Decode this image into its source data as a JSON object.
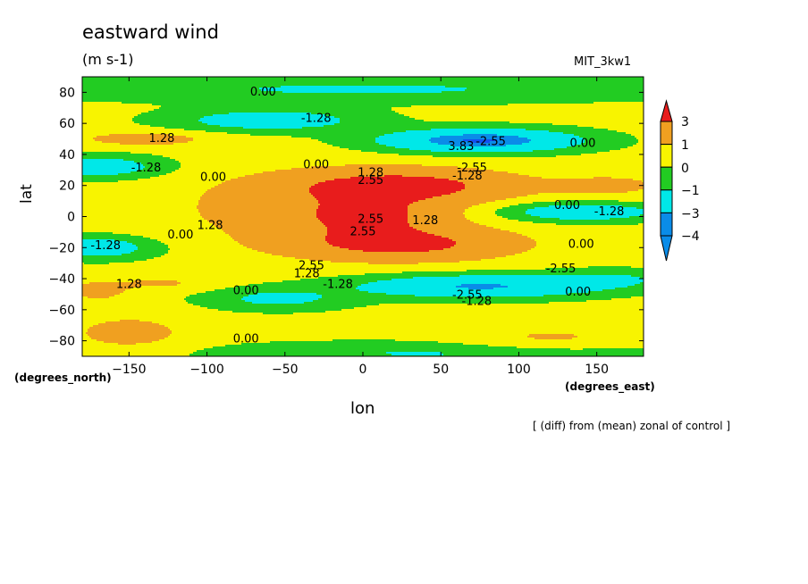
{
  "chart_data": {
    "type": "heatmap",
    "title": "eastward wind",
    "units": "(m s-1)",
    "model_label": "MIT_3kw1",
    "xlabel": "lon",
    "ylabel": "lat",
    "x_unit": "(degrees_east)",
    "y_unit": "(degrees_north)",
    "note": "[ (diff) from (mean) zonal of control ]",
    "xlim": [
      -180,
      180
    ],
    "ylim": [
      -90,
      90
    ],
    "x_ticks": [
      -150,
      -100,
      -50,
      0,
      50,
      100,
      150
    ],
    "y_ticks": [
      -80,
      -60,
      -40,
      -20,
      0,
      20,
      40,
      60,
      80
    ],
    "colorbar": {
      "labels": [
        "3",
        "1",
        "0",
        "-1",
        "-3",
        "-4"
      ],
      "colors": [
        "#e81c1c",
        "#f0a020",
        "#f8f400",
        "#22cc22",
        "#00e8e8",
        "#0a8ce8",
        "#1450f0"
      ]
    },
    "contour_labels": [
      {
        "text": "0.00",
        "lon": -64,
        "lat": 80
      },
      {
        "text": "-1.28",
        "lon": -30,
        "lat": 63
      },
      {
        "text": "1.28",
        "lon": -129,
        "lat": 50
      },
      {
        "text": "3.83",
        "lon": 63,
        "lat": 45
      },
      {
        "text": "-2.55",
        "lon": 82,
        "lat": 48
      },
      {
        "text": "0.00",
        "lon": 141,
        "lat": 47
      },
      {
        "text": "-1.28",
        "lon": -139,
        "lat": 31
      },
      {
        "text": "0.00",
        "lon": -96,
        "lat": 25
      },
      {
        "text": "0.00",
        "lon": -30,
        "lat": 33
      },
      {
        "text": "1.28",
        "lon": 5,
        "lat": 28
      },
      {
        "text": "2.55",
        "lon": 5,
        "lat": 23
      },
      {
        "text": "-2.55",
        "lon": 70,
        "lat": 31
      },
      {
        "text": "-1.28",
        "lon": 67,
        "lat": 26
      },
      {
        "text": "0.00",
        "lon": 131,
        "lat": 7
      },
      {
        "text": "-1.28",
        "lon": 158,
        "lat": 3
      },
      {
        "text": "1.28",
        "lon": -98,
        "lat": -6
      },
      {
        "text": "2.55",
        "lon": 5,
        "lat": -2
      },
      {
        "text": "1.28",
        "lon": 40,
        "lat": -3
      },
      {
        "text": "2.55",
        "lon": 0,
        "lat": -10
      },
      {
        "text": "0.00",
        "lon": -117,
        "lat": -12
      },
      {
        "text": "-1.28",
        "lon": -165,
        "lat": -19
      },
      {
        "text": "0.00",
        "lon": 140,
        "lat": -18
      },
      {
        "text": "2.55",
        "lon": -33,
        "lat": -32
      },
      {
        "text": "1.28",
        "lon": -36,
        "lat": -37
      },
      {
        "text": "-2.55",
        "lon": 127,
        "lat": -34
      },
      {
        "text": "1.28",
        "lon": -150,
        "lat": -44
      },
      {
        "text": "-1.28",
        "lon": -16,
        "lat": -44
      },
      {
        "text": "0.00",
        "lon": -75,
        "lat": -48
      },
      {
        "text": "-2.55",
        "lon": 67,
        "lat": -51
      },
      {
        "text": "-1.28",
        "lon": 73,
        "lat": -55
      },
      {
        "text": "0.00",
        "lon": 138,
        "lat": -49
      },
      {
        "text": "0.00",
        "lon": -75,
        "lat": -79
      }
    ]
  }
}
